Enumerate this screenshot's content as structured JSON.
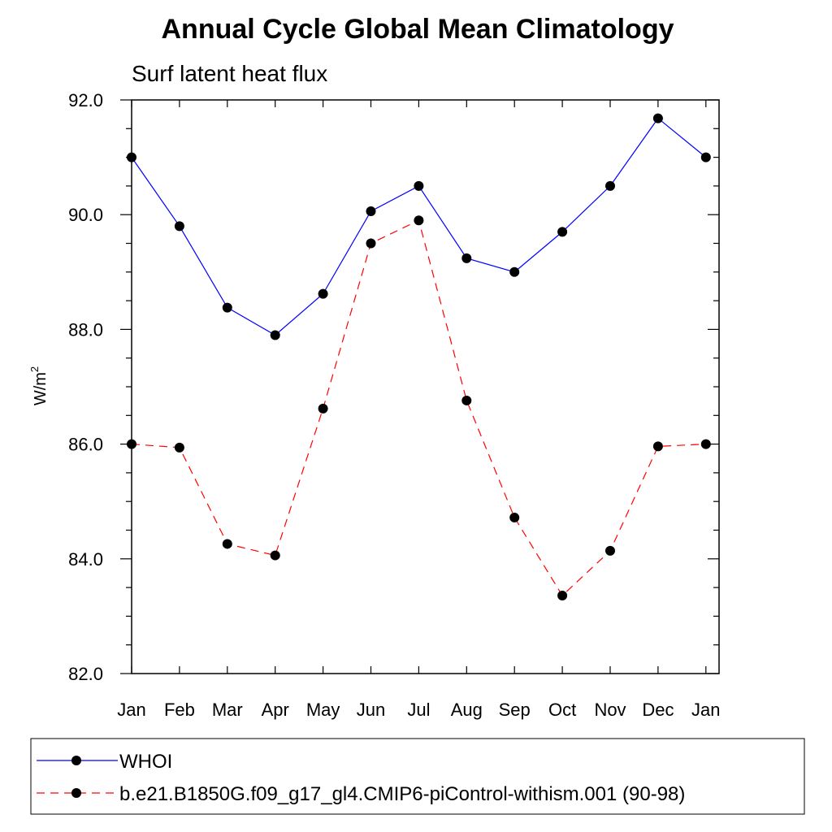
{
  "chart_data": {
    "type": "line",
    "title": "Annual Cycle Global Mean Climatology",
    "subtitle": "Surf latent heat flux",
    "ylabel": "W/m",
    "ylabel_superscript": "2",
    "categories": [
      "Jan",
      "Feb",
      "Mar",
      "Apr",
      "May",
      "Jun",
      "Jul",
      "Aug",
      "Sep",
      "Oct",
      "Nov",
      "Dec",
      "Jan"
    ],
    "ylim": [
      82.0,
      92.0
    ],
    "yticks": [
      "82.0",
      "84.0",
      "86.0",
      "88.0",
      "90.0",
      "92.0"
    ],
    "grid": false,
    "legend_placement": "bottom",
    "series": [
      {
        "name": "WHOI",
        "color": "#0000ff",
        "line_style": "solid",
        "marker": "filled-circle",
        "values": [
          91.0,
          89.8,
          88.38,
          87.9,
          88.62,
          90.06,
          90.5,
          89.24,
          89.0,
          89.7,
          90.5,
          91.68,
          91.0
        ]
      },
      {
        "name": "b.e21.B1850G.f09_g17_gl4.CMIP6-piControl-withism.001 (90-98)",
        "color": "#ff0000",
        "line_style": "dashed",
        "marker": "filled-circle",
        "values": [
          86.0,
          85.94,
          84.26,
          84.06,
          86.62,
          89.5,
          89.9,
          86.76,
          84.72,
          83.36,
          84.14,
          85.96,
          86.0
        ]
      }
    ]
  }
}
